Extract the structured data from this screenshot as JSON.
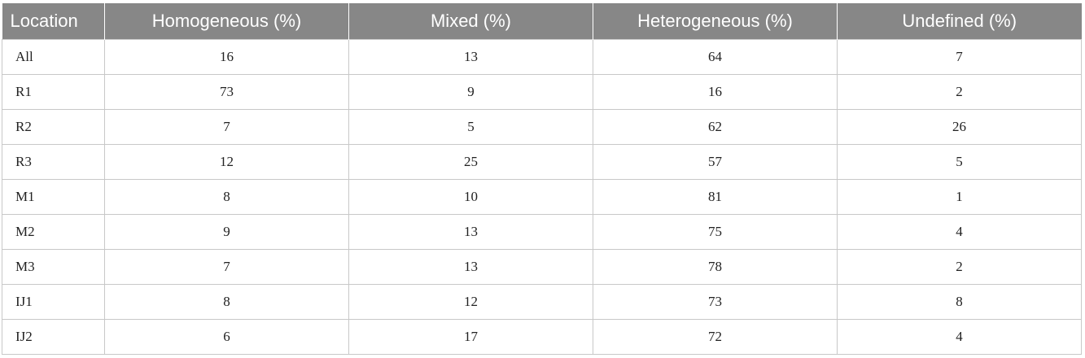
{
  "table": {
    "headers": [
      "Location",
      "Homogeneous (%)",
      "Mixed (%)",
      "Heterogeneous (%)",
      "Undefined (%)"
    ],
    "rows": [
      [
        "All",
        "16",
        "13",
        "64",
        "7"
      ],
      [
        "R1",
        "73",
        "9",
        "16",
        "2"
      ],
      [
        "R2",
        "7",
        "5",
        "62",
        "26"
      ],
      [
        "R3",
        "12",
        "25",
        "57",
        "5"
      ],
      [
        "M1",
        "8",
        "10",
        "81",
        "1"
      ],
      [
        "M2",
        "9",
        "13",
        "75",
        "4"
      ],
      [
        "M3",
        "7",
        "13",
        "78",
        "2"
      ],
      [
        "IJ1",
        "8",
        "12",
        "73",
        "8"
      ],
      [
        "IJ2",
        "6",
        "17",
        "72",
        "4"
      ]
    ]
  },
  "colors": {
    "header_bg": "#878787",
    "header_text": "#ffffff",
    "grid": "#c8c8c8"
  }
}
